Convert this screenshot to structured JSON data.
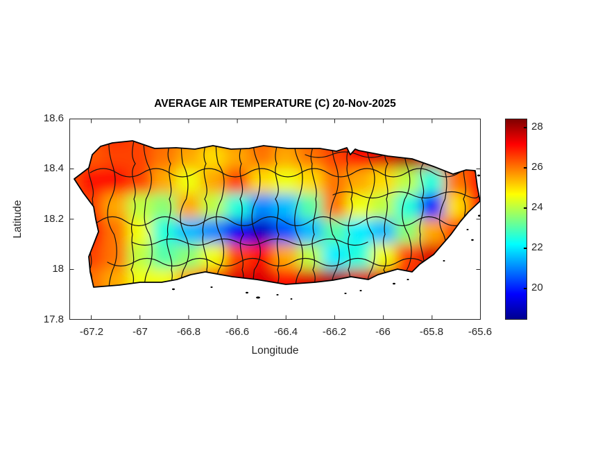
{
  "figure": {
    "title": "AVERAGE AIR TEMPERATURE (C) 20-Nov-2025",
    "xlabel": "Longitude",
    "ylabel": "Latitude",
    "x_tick_labels": [
      "-67.2",
      "-67",
      "-66.8",
      "-66.6",
      "-66.4",
      "-66.2",
      "-66",
      "-65.8",
      "-65.6"
    ],
    "y_tick_labels": [
      "18.6",
      "18.4",
      "18.2",
      "18",
      "17.8"
    ],
    "colorbar_tick_labels": [
      "28",
      "26",
      "24",
      "22",
      "20"
    ],
    "colors": {
      "axis_text": "#262626",
      "boundary_lines": "#111111",
      "coastline": "#000000",
      "background": "#ffffff",
      "colormap_stops": [
        "#00008F",
        "#0000FF",
        "#00FFFF",
        "#FFFF00",
        "#FF0000",
        "#7F0000"
      ]
    }
  },
  "chart_data": {
    "type": "heatmap",
    "title": "AVERAGE AIR TEMPERATURE (C) 20-Nov-2025",
    "xlabel": "Longitude",
    "ylabel": "Latitude",
    "region": "Puerto Rico with municipal boundaries overlaid",
    "xlim": [
      -67.29,
      -65.6
    ],
    "ylim": [
      17.8,
      18.6
    ],
    "x_ticks": [
      -67.2,
      -67,
      -66.8,
      -66.6,
      -66.4,
      -66.2,
      -66,
      -65.8,
      -65.6
    ],
    "y_ticks": [
      17.8,
      18,
      18.2,
      18.4,
      18.6
    ],
    "grid_on": false,
    "colorbar": {
      "colormap": "jet",
      "clim": [
        18.4,
        28.4
      ],
      "ticks": [
        20,
        22,
        24,
        26,
        28
      ],
      "position": "right"
    },
    "grid": {
      "lons": [
        -67.2,
        -67.1,
        -67.0,
        -66.9,
        -66.8,
        -66.7,
        -66.6,
        -66.5,
        -66.4,
        -66.3,
        -66.2,
        -66.1,
        -66.0,
        -65.9,
        -65.8,
        -65.7,
        -65.6
      ],
      "lats": [
        18.49,
        18.45,
        18.35,
        18.25,
        18.15,
        18.05,
        17.95
      ],
      "temps_c": [
        [
          null,
          27,
          26.5,
          26.5,
          26.5,
          26.5,
          27,
          26.5,
          26.5,
          27,
          27.5,
          28,
          28,
          28,
          27.5,
          27,
          null
        ],
        [
          null,
          26.5,
          26.5,
          26,
          25.5,
          25,
          25.5,
          26,
          25.5,
          26,
          26.5,
          27,
          27.5,
          28,
          27.5,
          27,
          null
        ],
        [
          27,
          27,
          26.5,
          25.5,
          24.5,
          25.5,
          26.5,
          25,
          24.5,
          25,
          26,
          25.5,
          25,
          24,
          22.5,
          26,
          27
        ],
        [
          26.5,
          25.5,
          24,
          23.5,
          25.5,
          24,
          22.5,
          21,
          21.5,
          23,
          26,
          24.5,
          24,
          22.5,
          20,
          25,
          27
        ],
        [
          27,
          26,
          24.5,
          22.5,
          21.5,
          21,
          19.5,
          19,
          20.5,
          21.5,
          23,
          22,
          21.5,
          23.5,
          25.5,
          26.5,
          27
        ],
        [
          26.5,
          26,
          24,
          23,
          23.5,
          24.5,
          26.5,
          27,
          25.5,
          24,
          22,
          22.5,
          24.5,
          26.5,
          27.5,
          27,
          null
        ],
        [
          26,
          25.5,
          24.5,
          24.5,
          25.5,
          26.5,
          27.5,
          27.5,
          27,
          27.5,
          28,
          27.5,
          27.5,
          27,
          null,
          null,
          null
        ]
      ]
    }
  }
}
